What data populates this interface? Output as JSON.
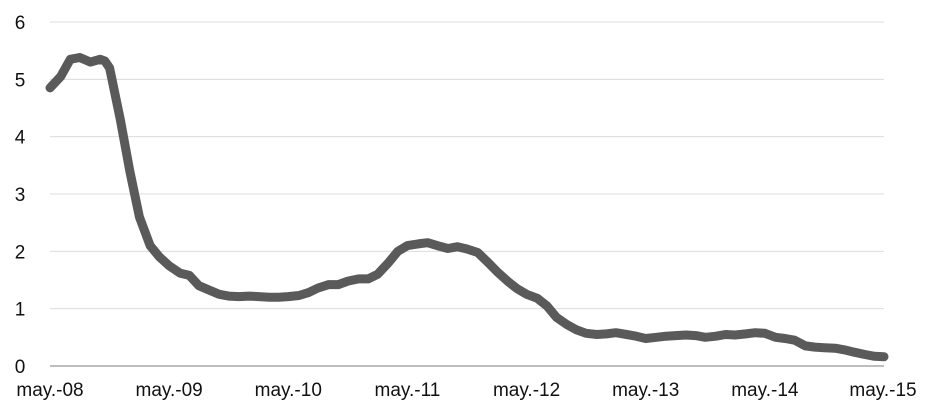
{
  "chart_data": {
    "type": "line",
    "title": "",
    "xlabel": "",
    "ylabel": "",
    "ylim": [
      0,
      6
    ],
    "yticks": [
      0,
      1,
      2,
      3,
      4,
      5,
      6
    ],
    "xticks": [
      "may.-08",
      "may.-09",
      "may.-10",
      "may.-11",
      "may.-12",
      "may.-13",
      "may.-14",
      "may.-15"
    ],
    "xlim": [
      2008.33,
      2015.33
    ],
    "grid": "horizontal",
    "legend": "none",
    "series": [
      {
        "color": "#5a5a5a",
        "points": [
          [
            2008.33,
            4.85
          ],
          [
            2008.42,
            5.05
          ],
          [
            2008.5,
            5.35
          ],
          [
            2008.58,
            5.38
          ],
          [
            2008.67,
            5.3
          ],
          [
            2008.75,
            5.35
          ],
          [
            2008.79,
            5.32
          ],
          [
            2008.83,
            5.2
          ],
          [
            2008.92,
            4.3
          ],
          [
            2009.0,
            3.4
          ],
          [
            2009.08,
            2.6
          ],
          [
            2009.17,
            2.1
          ],
          [
            2009.25,
            1.9
          ],
          [
            2009.33,
            1.75
          ],
          [
            2009.42,
            1.62
          ],
          [
            2009.5,
            1.58
          ],
          [
            2009.58,
            1.4
          ],
          [
            2009.67,
            1.32
          ],
          [
            2009.75,
            1.25
          ],
          [
            2009.83,
            1.22
          ],
          [
            2009.92,
            1.21
          ],
          [
            2010.0,
            1.22
          ],
          [
            2010.08,
            1.21
          ],
          [
            2010.17,
            1.2
          ],
          [
            2010.25,
            1.2
          ],
          [
            2010.33,
            1.21
          ],
          [
            2010.42,
            1.23
          ],
          [
            2010.5,
            1.28
          ],
          [
            2010.58,
            1.36
          ],
          [
            2010.67,
            1.42
          ],
          [
            2010.75,
            1.42
          ],
          [
            2010.83,
            1.48
          ],
          [
            2010.92,
            1.52
          ],
          [
            2011.0,
            1.52
          ],
          [
            2011.08,
            1.6
          ],
          [
            2011.17,
            1.8
          ],
          [
            2011.25,
            2.0
          ],
          [
            2011.33,
            2.1
          ],
          [
            2011.42,
            2.13
          ],
          [
            2011.5,
            2.15
          ],
          [
            2011.58,
            2.1
          ],
          [
            2011.67,
            2.05
          ],
          [
            2011.75,
            2.08
          ],
          [
            2011.83,
            2.04
          ],
          [
            2011.92,
            1.98
          ],
          [
            2012.0,
            1.82
          ],
          [
            2012.08,
            1.65
          ],
          [
            2012.17,
            1.48
          ],
          [
            2012.25,
            1.35
          ],
          [
            2012.33,
            1.25
          ],
          [
            2012.42,
            1.18
          ],
          [
            2012.5,
            1.05
          ],
          [
            2012.58,
            0.85
          ],
          [
            2012.67,
            0.72
          ],
          [
            2012.75,
            0.63
          ],
          [
            2012.83,
            0.57
          ],
          [
            2012.92,
            0.55
          ],
          [
            2013.0,
            0.56
          ],
          [
            2013.08,
            0.58
          ],
          [
            2013.17,
            0.55
          ],
          [
            2013.25,
            0.52
          ],
          [
            2013.33,
            0.48
          ],
          [
            2013.42,
            0.5
          ],
          [
            2013.5,
            0.52
          ],
          [
            2013.58,
            0.53
          ],
          [
            2013.67,
            0.54
          ],
          [
            2013.75,
            0.53
          ],
          [
            2013.83,
            0.5
          ],
          [
            2013.92,
            0.52
          ],
          [
            2014.0,
            0.55
          ],
          [
            2014.08,
            0.54
          ],
          [
            2014.17,
            0.56
          ],
          [
            2014.25,
            0.58
          ],
          [
            2014.33,
            0.57
          ],
          [
            2014.42,
            0.5
          ],
          [
            2014.5,
            0.48
          ],
          [
            2014.58,
            0.45
          ],
          [
            2014.67,
            0.35
          ],
          [
            2014.75,
            0.33
          ],
          [
            2014.83,
            0.32
          ],
          [
            2014.92,
            0.31
          ],
          [
            2015.0,
            0.28
          ],
          [
            2015.08,
            0.24
          ],
          [
            2015.17,
            0.2
          ],
          [
            2015.25,
            0.17
          ],
          [
            2015.33,
            0.16
          ]
        ]
      }
    ]
  }
}
